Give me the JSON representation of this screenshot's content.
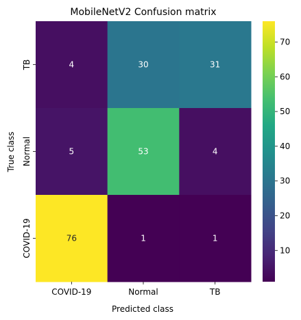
{
  "chart_data": {
    "type": "heatmap",
    "title": "MobileNetV2 Confusion matrix",
    "xlabel": "Predicted class",
    "ylabel": "True class",
    "x_categories": [
      "COVID-19",
      "Normal",
      "TB"
    ],
    "y_categories": [
      "TB",
      "Normal",
      "COVID-19"
    ],
    "values": [
      [
        4,
        30,
        31
      ],
      [
        5,
        53,
        4
      ],
      [
        76,
        1,
        1
      ]
    ],
    "colormap": "viridis",
    "colorbar": {
      "range": [
        1,
        76
      ],
      "ticks": [
        10,
        20,
        30,
        40,
        50,
        60,
        70
      ]
    },
    "grid": false,
    "legend": "colorbar-right"
  },
  "colors": {
    "text_light": "#ffffff",
    "text_dark": "#262626",
    "axis": "#000000"
  }
}
